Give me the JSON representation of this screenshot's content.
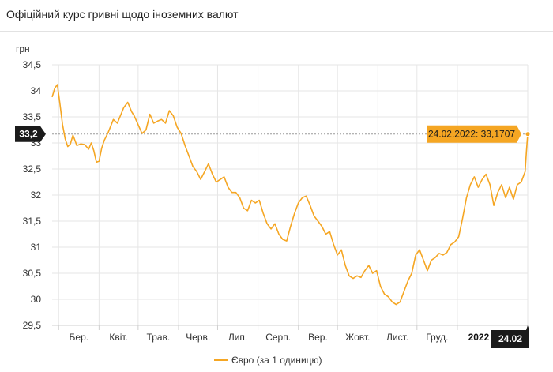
{
  "header": {
    "title": "Офіційний курс гривні щодо іноземних валют"
  },
  "chart_data": {
    "type": "line",
    "y_unit": "грн",
    "ylim": [
      29.5,
      34.5
    ],
    "y_ticks": [
      29.5,
      30,
      30.5,
      31,
      31.5,
      32,
      32.5,
      33,
      33.5,
      34,
      34.5
    ],
    "y_tick_labels": [
      "29,5",
      "30",
      "30,5",
      "31",
      "31,5",
      "32",
      "32,5",
      "33",
      "33,5",
      "34",
      "34,5"
    ],
    "x_range": [
      "2021-02-24",
      "2022-02-24"
    ],
    "x_ticks": [
      {
        "label": "Бер.",
        "date": "2021-03-01",
        "bold": false
      },
      {
        "label": "Квіт.",
        "date": "2021-04-01",
        "bold": false
      },
      {
        "label": "Трав.",
        "date": "2021-05-01",
        "bold": false
      },
      {
        "label": "Черв.",
        "date": "2021-06-01",
        "bold": false
      },
      {
        "label": "Лип.",
        "date": "2021-07-01",
        "bold": false
      },
      {
        "label": "Серп.",
        "date": "2021-08-01",
        "bold": false
      },
      {
        "label": "Вер.",
        "date": "2021-09-01",
        "bold": false
      },
      {
        "label": "Жовт.",
        "date": "2021-10-01",
        "bold": false
      },
      {
        "label": "Лист.",
        "date": "2021-11-01",
        "bold": false
      },
      {
        "label": "Груд.",
        "date": "2021-12-01",
        "bold": false
      },
      {
        "label": "2022",
        "date": "2022-01-01",
        "bold": true
      }
    ],
    "crosshair": {
      "y_label": "33,2",
      "x_label": "24.02",
      "y_value": 33.1707,
      "x_date": "2022-02-24"
    },
    "tooltip": "24.02.2022: 33,1707",
    "grid": true,
    "legend_position": "bottom-center",
    "series": [
      {
        "name": "Євро (за 1 одиницю)",
        "color": "#f5a623",
        "points": [
          [
            "2021-02-24",
            33.88
          ],
          [
            "2021-02-26",
            34.05
          ],
          [
            "2021-02-28",
            34.12
          ],
          [
            "2021-03-02",
            33.75
          ],
          [
            "2021-03-04",
            33.35
          ],
          [
            "2021-03-06",
            33.08
          ],
          [
            "2021-03-08",
            32.93
          ],
          [
            "2021-03-10",
            32.98
          ],
          [
            "2021-03-12",
            33.15
          ],
          [
            "2021-03-15",
            32.95
          ],
          [
            "2021-03-18",
            32.98
          ],
          [
            "2021-03-21",
            32.97
          ],
          [
            "2021-03-24",
            32.88
          ],
          [
            "2021-03-26",
            33.0
          ],
          [
            "2021-03-28",
            32.85
          ],
          [
            "2021-03-30",
            32.63
          ],
          [
            "2021-04-01",
            32.65
          ],
          [
            "2021-04-03",
            32.9
          ],
          [
            "2021-04-05",
            33.05
          ],
          [
            "2021-04-08",
            33.2
          ],
          [
            "2021-04-12",
            33.45
          ],
          [
            "2021-04-15",
            33.38
          ],
          [
            "2021-04-17",
            33.5
          ],
          [
            "2021-04-20",
            33.68
          ],
          [
            "2021-04-23",
            33.78
          ],
          [
            "2021-04-26",
            33.6
          ],
          [
            "2021-04-28",
            33.52
          ],
          [
            "2021-05-01",
            33.35
          ],
          [
            "2021-05-04",
            33.18
          ],
          [
            "2021-05-07",
            33.25
          ],
          [
            "2021-05-10",
            33.55
          ],
          [
            "2021-05-13",
            33.38
          ],
          [
            "2021-05-16",
            33.42
          ],
          [
            "2021-05-19",
            33.45
          ],
          [
            "2021-05-22",
            33.38
          ],
          [
            "2021-05-25",
            33.62
          ],
          [
            "2021-05-28",
            33.52
          ],
          [
            "2021-05-31",
            33.3
          ],
          [
            "2021-06-03",
            33.18
          ],
          [
            "2021-06-06",
            32.95
          ],
          [
            "2021-06-09",
            32.75
          ],
          [
            "2021-06-12",
            32.55
          ],
          [
            "2021-06-15",
            32.45
          ],
          [
            "2021-06-18",
            32.3
          ],
          [
            "2021-06-21",
            32.45
          ],
          [
            "2021-06-24",
            32.6
          ],
          [
            "2021-06-27",
            32.4
          ],
          [
            "2021-06-30",
            32.25
          ],
          [
            "2021-07-03",
            32.3
          ],
          [
            "2021-07-06",
            32.35
          ],
          [
            "2021-07-09",
            32.15
          ],
          [
            "2021-07-12",
            32.05
          ],
          [
            "2021-07-15",
            32.05
          ],
          [
            "2021-07-18",
            31.95
          ],
          [
            "2021-07-21",
            31.75
          ],
          [
            "2021-07-24",
            31.7
          ],
          [
            "2021-07-27",
            31.9
          ],
          [
            "2021-07-30",
            31.85
          ],
          [
            "2021-08-02",
            31.9
          ],
          [
            "2021-08-05",
            31.65
          ],
          [
            "2021-08-08",
            31.45
          ],
          [
            "2021-08-11",
            31.35
          ],
          [
            "2021-08-14",
            31.45
          ],
          [
            "2021-08-17",
            31.25
          ],
          [
            "2021-08-20",
            31.15
          ],
          [
            "2021-08-23",
            31.12
          ],
          [
            "2021-08-26",
            31.4
          ],
          [
            "2021-08-29",
            31.65
          ],
          [
            "2021-09-01",
            31.85
          ],
          [
            "2021-09-04",
            31.95
          ],
          [
            "2021-09-07",
            31.98
          ],
          [
            "2021-09-10",
            31.8
          ],
          [
            "2021-09-13",
            31.6
          ],
          [
            "2021-09-16",
            31.5
          ],
          [
            "2021-09-19",
            31.4
          ],
          [
            "2021-09-22",
            31.25
          ],
          [
            "2021-09-25",
            31.3
          ],
          [
            "2021-09-28",
            31.05
          ],
          [
            "2021-10-01",
            30.85
          ],
          [
            "2021-10-04",
            30.95
          ],
          [
            "2021-10-07",
            30.65
          ],
          [
            "2021-10-10",
            30.45
          ],
          [
            "2021-10-13",
            30.4
          ],
          [
            "2021-10-16",
            30.45
          ],
          [
            "2021-10-19",
            30.42
          ],
          [
            "2021-10-22",
            30.55
          ],
          [
            "2021-10-25",
            30.65
          ],
          [
            "2021-10-28",
            30.5
          ],
          [
            "2021-10-31",
            30.55
          ],
          [
            "2021-11-03",
            30.25
          ],
          [
            "2021-11-06",
            30.1
          ],
          [
            "2021-11-09",
            30.05
          ],
          [
            "2021-11-12",
            29.95
          ],
          [
            "2021-11-15",
            29.9
          ],
          [
            "2021-11-18",
            29.95
          ],
          [
            "2021-11-21",
            30.15
          ],
          [
            "2021-11-24",
            30.35
          ],
          [
            "2021-11-27",
            30.5
          ],
          [
            "2021-11-30",
            30.85
          ],
          [
            "2021-12-03",
            30.95
          ],
          [
            "2021-12-06",
            30.75
          ],
          [
            "2021-12-09",
            30.55
          ],
          [
            "2021-12-12",
            30.75
          ],
          [
            "2021-12-15",
            30.8
          ],
          [
            "2021-12-18",
            30.88
          ],
          [
            "2021-12-21",
            30.85
          ],
          [
            "2021-12-24",
            30.9
          ],
          [
            "2021-12-27",
            31.05
          ],
          [
            "2021-12-30",
            31.1
          ],
          [
            "2022-01-02",
            31.2
          ],
          [
            "2022-01-05",
            31.55
          ],
          [
            "2022-01-08",
            31.95
          ],
          [
            "2022-01-11",
            32.2
          ],
          [
            "2022-01-14",
            32.35
          ],
          [
            "2022-01-17",
            32.15
          ],
          [
            "2022-01-20",
            32.3
          ],
          [
            "2022-01-23",
            32.4
          ],
          [
            "2022-01-26",
            32.2
          ],
          [
            "2022-01-29",
            31.8
          ],
          [
            "2022-02-01",
            32.05
          ],
          [
            "2022-02-04",
            32.2
          ],
          [
            "2022-02-07",
            31.95
          ],
          [
            "2022-02-10",
            32.15
          ],
          [
            "2022-02-13",
            31.92
          ],
          [
            "2022-02-16",
            32.2
          ],
          [
            "2022-02-19",
            32.25
          ],
          [
            "2022-02-22",
            32.45
          ],
          [
            "2022-02-23",
            32.85
          ],
          [
            "2022-02-24",
            33.1707
          ]
        ]
      }
    ]
  }
}
